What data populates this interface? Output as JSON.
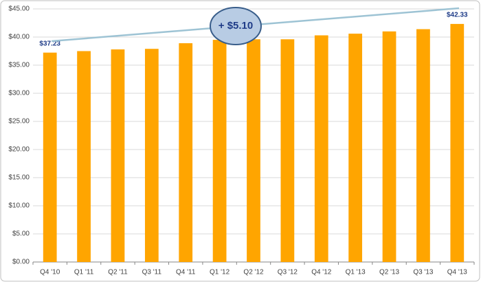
{
  "chart_data": {
    "type": "bar",
    "categories": [
      "Q4 '10",
      "Q1 '11",
      "Q2 '11",
      "Q3 '11",
      "Q4 '11",
      "Q1 '12",
      "Q2 '12",
      "Q3 '12",
      "Q4 '12",
      "Q1 '13",
      "Q2 '13",
      "Q3 '13",
      "Q4 '13"
    ],
    "values": [
      37.23,
      37.5,
      37.8,
      37.9,
      38.9,
      39.5,
      39.6,
      39.6,
      40.3,
      40.6,
      41.0,
      41.4,
      42.33
    ],
    "value_labels": [
      "$37.23",
      null,
      null,
      null,
      null,
      null,
      null,
      null,
      null,
      null,
      null,
      null,
      "$42.33"
    ],
    "color": "#ffa500",
    "ylim": [
      0,
      45
    ],
    "yticks": [
      {
        "value": 0,
        "label": "$0.00"
      },
      {
        "value": 5,
        "label": "$5.00"
      },
      {
        "value": 10,
        "label": "$10.00"
      },
      {
        "value": 15,
        "label": "$15.00"
      },
      {
        "value": 20,
        "label": "$20.00"
      },
      {
        "value": 25,
        "label": "$25.00"
      },
      {
        "value": 30,
        "label": "$30.00"
      },
      {
        "value": 35,
        "label": "$35.00"
      },
      {
        "value": 40,
        "label": "$40.00"
      },
      {
        "value": 45,
        "label": "$45.00"
      }
    ],
    "grid": true,
    "annotation": "+ $5.10"
  }
}
